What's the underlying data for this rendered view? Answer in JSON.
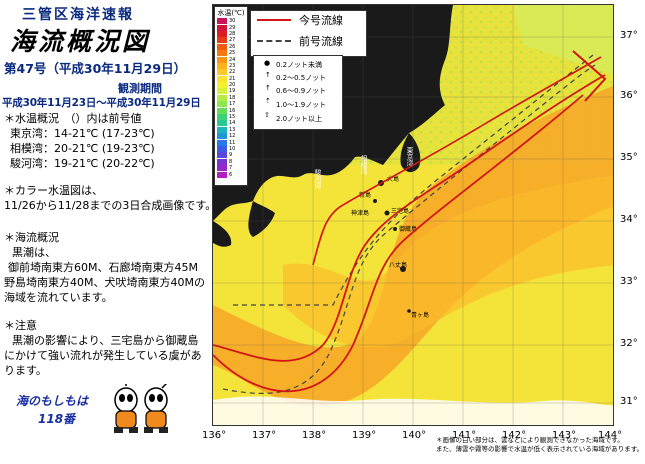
{
  "header": {
    "organization": "三管区海洋速報",
    "title": "海流概況図",
    "issue": "第47号（平成30年11月29日）",
    "period_heading": "観測期間",
    "period_value": "平成30年11月23日～平成30年11月29日"
  },
  "water_temp": {
    "heading": "＊水温概況　（）内は前号値",
    "rows": [
      {
        "place": "東京湾：",
        "value": "14-21℃",
        "prev": "(17-23℃)"
      },
      {
        "place": "相模湾：",
        "value": "20-21℃",
        "prev": "(19-23℃)"
      },
      {
        "place": "駿河湾：",
        "value": "19-21℃",
        "prev": "(20-22℃)"
      }
    ]
  },
  "color_note": {
    "line1": "＊カラー水温図は、",
    "line2": "11/26から11/28までの3日合成画像です。"
  },
  "current_summary": {
    "heading": "＊海流概況",
    "lines": [
      "黒潮は、",
      "御前埼南東方60M、石廊埼南東方45M",
      "野島埼南東方40M、犬吠埼南東方40Mの",
      "海域を流れています。"
    ]
  },
  "caution": {
    "heading": "＊注意",
    "lines": [
      "黒潮の影響により、三宅島から御蔵島",
      "にかけて強い流れが発生している虞があ",
      "ります。"
    ]
  },
  "motto": {
    "line1": "海のもしもは",
    "line2": "118番"
  },
  "map": {
    "lat_labels": [
      "37°",
      "36°",
      "35°",
      "34°",
      "33°",
      "32°",
      "31°"
    ],
    "lon_labels": [
      "136°",
      "137°",
      "138°",
      "139°",
      "140°",
      "141°",
      "142°",
      "143°",
      "144°"
    ],
    "temp_legend": {
      "title": "水温(℃)",
      "values": [
        "30",
        "29",
        "28",
        "27",
        "26",
        "25",
        "24",
        "23",
        "22",
        "21",
        "20",
        "19",
        "18",
        "17",
        "16",
        "15",
        "14",
        "13",
        "12",
        "11",
        "10",
        "9",
        "8",
        "7",
        "6"
      ],
      "colors": [
        "#c8145a",
        "#d2143c",
        "#dc1e1e",
        "#e63c14",
        "#f05a0a",
        "#f57814",
        "#fa9614",
        "#fbb41e",
        "#fcc828",
        "#fde132",
        "#f5f032",
        "#d7f03c",
        "#b4ec46",
        "#8ce650",
        "#64dc5a",
        "#3cd278",
        "#28c896",
        "#1eb4be",
        "#1e96dc",
        "#2878e6",
        "#3c5ae6",
        "#5a46dc",
        "#7832d2",
        "#9628c8",
        "#b41ebe"
      ]
    },
    "current_legend": {
      "current": "今号流線",
      "previous": "前号流線"
    },
    "velocity_legend": [
      "0.2ノット未満",
      "0.2～0.5ノット",
      "0.6～0.9ノット",
      "1.0～1.9ノット",
      "2.0ノット以上"
    ],
    "place_labels": [
      "相模湾",
      "駿河湾",
      "東京湾",
      "大島",
      "新島",
      "三宅島",
      "神津島",
      "御蔵島",
      "八丈島",
      "青ヶ島"
    ],
    "colors": {
      "land": "#1a1a1a",
      "current": "#d41414",
      "previous": "#444444",
      "frame": "#333333"
    }
  },
  "footnote": {
    "line1": "＊画像の白い部分は、雲などにより観測できなかった海域です。",
    "line2": "また、薄雲や霧等の影響で水温が低く表示されている海域があります。"
  }
}
